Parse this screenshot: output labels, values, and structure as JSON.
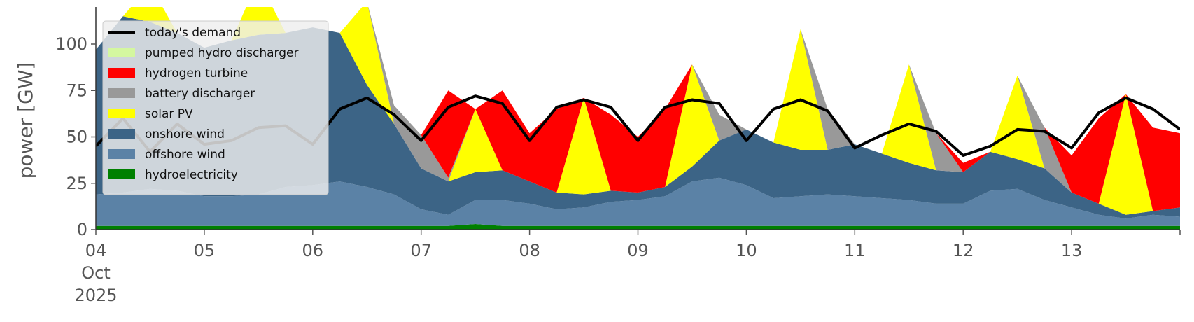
{
  "chart_data": {
    "type": "area",
    "title": "",
    "xlabel": "",
    "ylabel": "power [GW]",
    "ylim": [
      0,
      120
    ],
    "yticks": [
      0,
      25,
      50,
      75,
      100
    ],
    "ytick_labels": [
      "0",
      "25",
      "50",
      "75",
      "100"
    ],
    "xlim": [
      "2025-10-04 00:00",
      "2025-10-14 00:00"
    ],
    "xtick_labels": [
      {
        "date": "2025-10-04",
        "label": "04",
        "sublabels": [
          "Oct",
          "2025"
        ]
      },
      {
        "date": "2025-10-05",
        "label": "05"
      },
      {
        "date": "2025-10-06",
        "label": "06"
      },
      {
        "date": "2025-10-07",
        "label": "07"
      },
      {
        "date": "2025-10-08",
        "label": "08"
      },
      {
        "date": "2025-10-09",
        "label": "09"
      },
      {
        "date": "2025-10-10",
        "label": "10"
      },
      {
        "date": "2025-10-11",
        "label": "11"
      },
      {
        "date": "2025-10-12",
        "label": "12"
      },
      {
        "date": "2025-10-13",
        "label": "13"
      }
    ],
    "legend_placement": "top-left",
    "grid": false,
    "x": [
      "2025-10-04 00:00",
      "2025-10-04 06:00",
      "2025-10-04 12:00",
      "2025-10-04 18:00",
      "2025-10-05 00:00",
      "2025-10-05 06:00",
      "2025-10-05 12:00",
      "2025-10-05 18:00",
      "2025-10-06 00:00",
      "2025-10-06 06:00",
      "2025-10-06 12:00",
      "2025-10-06 18:00",
      "2025-10-07 00:00",
      "2025-10-07 06:00",
      "2025-10-07 12:00",
      "2025-10-07 18:00",
      "2025-10-08 00:00",
      "2025-10-08 06:00",
      "2025-10-08 12:00",
      "2025-10-08 18:00",
      "2025-10-09 00:00",
      "2025-10-09 06:00",
      "2025-10-09 12:00",
      "2025-10-09 18:00",
      "2025-10-10 00:00",
      "2025-10-10 06:00",
      "2025-10-10 12:00",
      "2025-10-10 18:00",
      "2025-10-11 00:00",
      "2025-10-11 06:00",
      "2025-10-11 12:00",
      "2025-10-11 18:00",
      "2025-10-12 00:00",
      "2025-10-12 06:00",
      "2025-10-12 12:00",
      "2025-10-12 18:00",
      "2025-10-13 00:00",
      "2025-10-13 06:00",
      "2025-10-13 12:00",
      "2025-10-13 18:00",
      "2025-10-14 00:00"
    ],
    "series": [
      {
        "name": "hydroelectricity",
        "color": "#008000",
        "values": [
          2,
          2,
          2,
          2,
          2,
          2,
          2,
          2,
          2,
          2,
          2,
          2,
          2,
          2,
          3,
          2,
          2,
          2,
          2,
          2,
          2,
          2,
          2,
          2,
          2,
          2,
          2,
          2,
          2,
          2,
          2,
          2,
          2,
          2,
          2,
          2,
          2,
          2,
          2,
          2,
          2
        ]
      },
      {
        "name": "offshore wind",
        "color": "#5b82a6",
        "values": [
          17,
          18,
          20,
          19,
          16,
          16,
          17,
          21,
          22,
          24,
          21,
          17,
          9,
          6,
          13,
          14,
          12,
          9,
          10,
          13,
          14,
          16,
          24,
          26,
          22,
          15,
          16,
          17,
          16,
          15,
          14,
          12,
          12,
          19,
          20,
          14,
          10,
          6,
          4,
          6,
          5
        ]
      },
      {
        "name": "onshore wind",
        "color": "#3c6486",
        "values": [
          78,
          95,
          90,
          85,
          80,
          84,
          86,
          83,
          85,
          80,
          55,
          38,
          22,
          18,
          15,
          16,
          12,
          9,
          7,
          6,
          4,
          5,
          8,
          20,
          30,
          30,
          25,
          24,
          28,
          24,
          20,
          18,
          17,
          21,
          16,
          17,
          8,
          6,
          2,
          2,
          5
        ]
      },
      {
        "name": "solar PV",
        "color": "#ffff00",
        "values": [
          0,
          0,
          20,
          0,
          0,
          0,
          30,
          0,
          0,
          0,
          45,
          0,
          0,
          0,
          34,
          0,
          0,
          0,
          52,
          0,
          0,
          0,
          55,
          0,
          0,
          0,
          65,
          0,
          0,
          0,
          53,
          0,
          0,
          0,
          45,
          0,
          0,
          0,
          65,
          0,
          0
        ]
      },
      {
        "name": "battery discharger",
        "color": "#999999",
        "values": [
          0,
          0,
          0,
          0,
          0,
          0,
          0,
          0,
          0,
          0,
          0,
          10,
          18,
          2,
          0,
          0,
          0,
          0,
          0,
          0,
          0,
          0,
          0,
          14,
          0,
          0,
          0,
          22,
          0,
          0,
          0,
          20,
          0,
          0,
          0,
          22,
          0,
          0,
          0,
          0,
          0
        ]
      },
      {
        "name": "hydrogen turbine",
        "color": "#ff0000",
        "values": [
          0,
          0,
          0,
          0,
          0,
          0,
          0,
          0,
          0,
          0,
          0,
          0,
          0,
          47,
          0,
          43,
          26,
          45,
          0,
          41,
          30,
          42,
          0,
          0,
          0,
          0,
          0,
          0,
          0,
          0,
          0,
          0,
          5,
          0,
          0,
          0,
          20,
          46,
          0,
          45,
          40
        ]
      },
      {
        "name": "pumped hydro discharger",
        "color": "#d4f7a0",
        "values": [
          0,
          0,
          0,
          0,
          0,
          0,
          0,
          0,
          0,
          0,
          0,
          0,
          0,
          0,
          0,
          0,
          0,
          0,
          0,
          0,
          0,
          0,
          0,
          0,
          0,
          0,
          0,
          0,
          0,
          0,
          0,
          0,
          0,
          0,
          0,
          0,
          0,
          0,
          0,
          0,
          0
        ]
      }
    ],
    "demand": {
      "name": "today's demand",
      "color": "#000000",
      "values": [
        45,
        60,
        42,
        57,
        46,
        48,
        55,
        56,
        46,
        65,
        71,
        62,
        48,
        66,
        72,
        68,
        48,
        66,
        70,
        66,
        48,
        66,
        70,
        68,
        48,
        65,
        70,
        64,
        44,
        51,
        57,
        53,
        40,
        45,
        54,
        53,
        44,
        63,
        71,
        65,
        54
      ]
    },
    "legend": [
      {
        "label": "today's demand",
        "kind": "line",
        "color": "#000000"
      },
      {
        "label": "pumped hydro discharger",
        "kind": "patch",
        "color": "#d4f7a0"
      },
      {
        "label": "hydrogen turbine",
        "kind": "patch",
        "color": "#ff0000"
      },
      {
        "label": "battery discharger",
        "kind": "patch",
        "color": "#999999"
      },
      {
        "label": "solar PV",
        "kind": "patch",
        "color": "#ffff00"
      },
      {
        "label": "onshore wind",
        "kind": "patch",
        "color": "#3c6486"
      },
      {
        "label": "offshore wind",
        "kind": "patch",
        "color": "#5b82a6"
      },
      {
        "label": "hydroelectricity",
        "kind": "patch",
        "color": "#008000"
      }
    ]
  }
}
